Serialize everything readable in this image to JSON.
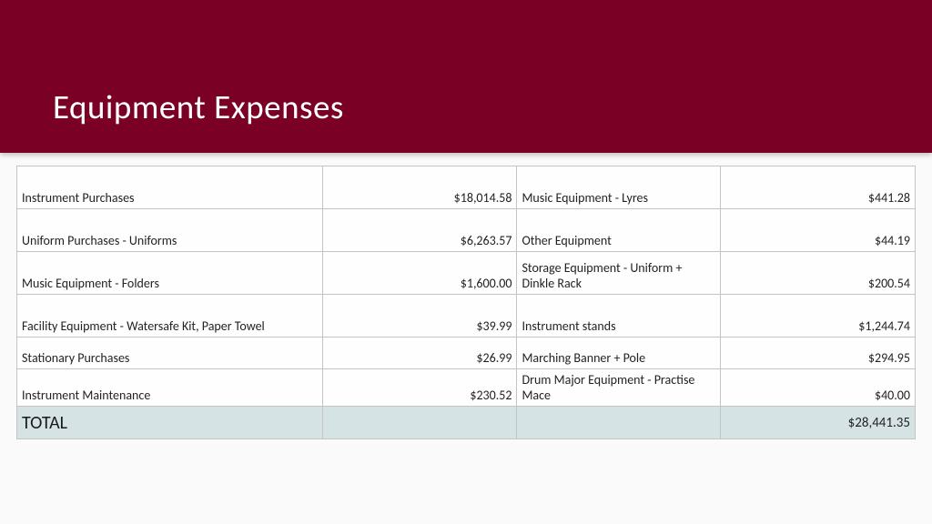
{
  "header": {
    "title": "Equipment Expenses",
    "background_color": "#7a0026",
    "title_color": "#ffffff",
    "title_fontsize": 37
  },
  "table": {
    "border_color": "#c4c4c4",
    "background_color": "#fefefe",
    "total_row_bg": "#d5e3e4",
    "font_size": 14,
    "rows": [
      {
        "label1": "Instrument Purchases",
        "value1": "$18,014.58",
        "label2": "Music Equipment - Lyres",
        "value2": "$441.28"
      },
      {
        "label1": "Uniform Purchases - Uniforms",
        "value1": "$6,263.57",
        "label2": "Other Equipment",
        "value2": "$44.19"
      },
      {
        "label1": "Music Equipment - Folders",
        "value1": "$1,600.00",
        "label2": "Storage Equipment - Uniform + Dinkle Rack",
        "value2": "$200.54"
      },
      {
        "label1": "Facility Equipment - Watersafe Kit, Paper Towel",
        "value1": "$39.99",
        "label2": "Instrument stands",
        "value2": "$1,244.74"
      },
      {
        "label1": "Stationary Purchases",
        "value1": "$26.99",
        "label2": "Marching Banner + Pole",
        "value2": "$294.95"
      },
      {
        "label1": "Instrument Maintenance",
        "value1": "$230.52",
        "label2": "Drum Major Equipment - Practise Mace",
        "value2": "$40.00"
      }
    ],
    "total": {
      "label": "TOTAL",
      "value": "$28,441.35"
    }
  }
}
